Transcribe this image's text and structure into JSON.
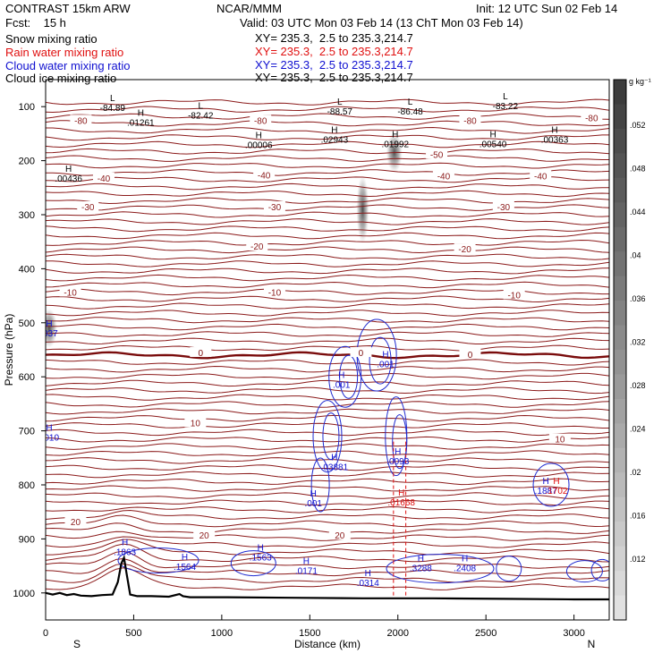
{
  "header": {
    "model": "CONTRAST 15km ARW",
    "org": "NCAR/MMM",
    "init": "Init: 12 UTC Sun 02 Feb 14",
    "fcst": "Fcst:    15 h",
    "valid": "Valid: 03 UTC Mon 03 Feb 14 (13 ChT Mon 03 Feb 14)"
  },
  "legend": [
    {
      "name": "Snow mixing ratio",
      "xy": "XY= 235.3,  2.5 to 235.3,214.7",
      "color": "#000000"
    },
    {
      "name": "Rain water mixing ratio",
      "xy": "XY= 235.3,  2.5 to 235.3,214.7",
      "color": "#e01010"
    },
    {
      "name": "Cloud water mixing ratio",
      "xy": "XY= 235.3,  2.5 to 235.3,214.7",
      "color": "#1010d0"
    },
    {
      "name": "Cloud ice mixing ratio",
      "xy": "XY= 235.3,  2.5 to 235.3,214.7",
      "color": "#000000"
    }
  ],
  "colorbar": {
    "unit": "g kg⁻¹",
    "ticks": [
      ".052",
      ".048",
      ".044",
      ".04",
      ".036",
      ".032",
      ".028",
      ".024",
      ".02",
      ".016",
      ".012"
    ]
  },
  "chart_data": {
    "type": "cross-section",
    "xlabel": "Distance (km)",
    "ylabel": "Pressure (hPa)",
    "xlim": [
      0,
      3200
    ],
    "ylim": [
      1050,
      50
    ],
    "x_ticks": [
      0,
      500,
      1000,
      1500,
      2000,
      2500,
      3000
    ],
    "y_ticks": [
      100,
      200,
      300,
      400,
      500,
      600,
      700,
      800,
      900,
      1000
    ],
    "x_end_labels": {
      "left": "S",
      "right": "N"
    },
    "temperature_isotherms": [
      {
        "value": "-80",
        "x": 200,
        "p": 125
      },
      {
        "value": "-80",
        "x": 1220,
        "p": 125
      },
      {
        "value": "-80",
        "x": 2410,
        "p": 125
      },
      {
        "value": "-80",
        "x": 3100,
        "p": 120
      },
      {
        "value": "-50",
        "x": 2220,
        "p": 188
      },
      {
        "value": "-40",
        "x": 330,
        "p": 232
      },
      {
        "value": "-40",
        "x": 1240,
        "p": 226
      },
      {
        "value": "-40",
        "x": 2260,
        "p": 228
      },
      {
        "value": "-40",
        "x": 2810,
        "p": 228
      },
      {
        "value": "-30",
        "x": 240,
        "p": 285
      },
      {
        "value": "-30",
        "x": 1300,
        "p": 285
      },
      {
        "value": "-30",
        "x": 2600,
        "p": 285
      },
      {
        "value": "-20",
        "x": 1200,
        "p": 358
      },
      {
        "value": "-20",
        "x": 2380,
        "p": 363
      },
      {
        "value": "-10",
        "x": 140,
        "p": 443
      },
      {
        "value": "-10",
        "x": 1300,
        "p": 443
      },
      {
        "value": "-10",
        "x": 2660,
        "p": 448
      },
      {
        "value": "0",
        "x": 880,
        "p": 555
      },
      {
        "value": "0",
        "x": 1790,
        "p": 555
      },
      {
        "value": "0",
        "x": 2410,
        "p": 558
      },
      {
        "value": "10",
        "x": 850,
        "p": 685
      },
      {
        "value": "10",
        "x": 2920,
        "p": 715
      },
      {
        "value": "20",
        "x": 170,
        "p": 868
      },
      {
        "value": "20",
        "x": 900,
        "p": 893
      },
      {
        "value": "20",
        "x": 1670,
        "p": 893
      }
    ],
    "pressure_extrema": [
      {
        "type": "L",
        "value": "-84.89",
        "x": 380,
        "p": 103
      },
      {
        "type": "H",
        "value": ".01261",
        "x": 540,
        "p": 130
      },
      {
        "type": "L",
        "value": "-82.42",
        "x": 880,
        "p": 117
      },
      {
        "type": "L",
        "value": "-88.57",
        "x": 1670,
        "p": 110
      },
      {
        "type": "L",
        "value": "-86.48",
        "x": 2070,
        "p": 110
      },
      {
        "type": "L",
        "value": "-83.22",
        "x": 2610,
        "p": 100
      },
      {
        "type": "H",
        "value": ".00006",
        "x": 1210,
        "p": 172
      },
      {
        "type": "H",
        "value": ".02943",
        "x": 1640,
        "p": 162
      },
      {
        "type": "H",
        "value": ".01992",
        "x": 1985,
        "p": 170
      },
      {
        "type": "H",
        "value": ".00540",
        "x": 2540,
        "p": 170
      },
      {
        "type": "H",
        "value": ".00363",
        "x": 2890,
        "p": 162
      },
      {
        "type": "H",
        "value": ".00436",
        "x": 130,
        "p": 234
      }
    ],
    "cloud_extrema": [
      {
        "type": "H",
        "value": ".037",
        "x": 20,
        "p": 520
      },
      {
        "type": "H",
        "value": ".001",
        "x": 1930,
        "p": 577
      },
      {
        "type": "H",
        "value": ".001",
        "x": 1680,
        "p": 615
      },
      {
        "type": "H",
        "value": ".0093",
        "x": 2000,
        "p": 757
      },
      {
        "type": "H",
        "value": ".03881",
        "x": 1640,
        "p": 768
      },
      {
        "type": "H",
        "value": ".001",
        "x": 1520,
        "p": 835
      },
      {
        "type": "H",
        "value": ".1863",
        "x": 450,
        "p": 925
      },
      {
        "type": "H",
        "value": ".1564",
        "x": 790,
        "p": 952
      },
      {
        "type": "H",
        "value": ".1563",
        "x": 1220,
        "p": 935
      },
      {
        "type": "H",
        "value": ".0171",
        "x": 1480,
        "p": 960
      },
      {
        "type": "H",
        "value": ".0314",
        "x": 1830,
        "p": 982
      },
      {
        "type": "H",
        "value": ".3288",
        "x": 2130,
        "p": 955
      },
      {
        "type": "H",
        "value": ".2408",
        "x": 2380,
        "p": 955
      },
      {
        "type": "H",
        "value": ".1887",
        "x": 2840,
        "p": 812
      },
      {
        "type": "H",
        "value": "0010",
        "x": 20,
        "p": 713
      }
    ],
    "rain_extrema": [
      {
        "type": "H",
        "value": ".01668",
        "x": 2020,
        "p": 833
      },
      {
        "type": "H",
        "value": ".1702",
        "x": 2900,
        "p": 812
      }
    ],
    "terrain_profile": {
      "x": [
        0,
        40,
        80,
        120,
        160,
        200,
        260,
        320,
        380,
        410,
        430,
        445,
        460,
        480,
        520,
        600,
        700,
        760,
        780,
        820,
        1000,
        1400,
        1800,
        2000,
        2200,
        2600,
        3000,
        3200
      ],
      "p": [
        1000,
        1003,
        1000,
        1004,
        1002,
        1005,
        1006,
        1004,
        1003,
        980,
        945,
        935,
        965,
        1003,
        1006,
        1006,
        1007,
        1002,
        1006,
        1008,
        1008,
        1009,
        1010,
        1010,
        1010,
        1011,
        1012,
        1012
      ]
    },
    "shading_blobs": [
      {
        "x": 1980,
        "p": 185
      },
      {
        "x": 1800,
        "p": 290
      },
      {
        "x": 20,
        "p": 510
      }
    ]
  }
}
